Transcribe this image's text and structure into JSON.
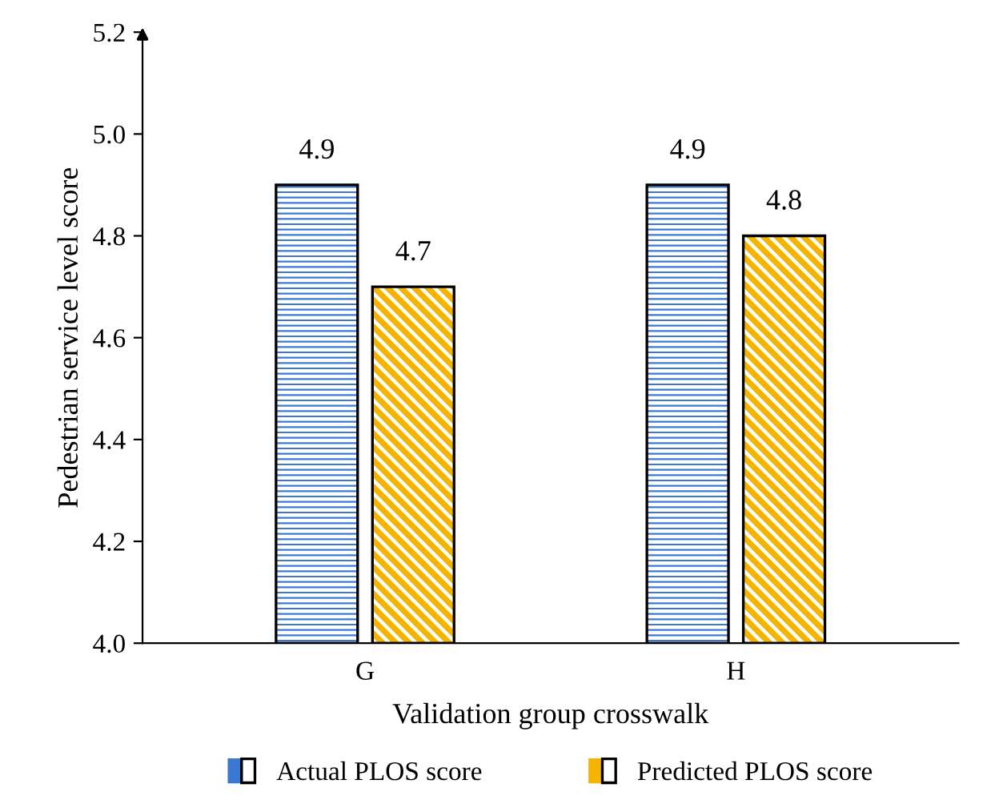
{
  "chart_data": {
    "type": "bar",
    "xlabel": "Validation group crosswalk",
    "ylabel": "Pedestrian service level score",
    "categories": [
      "G",
      "H"
    ],
    "series": [
      {
        "name": "Actual PLOS score",
        "color": "#3a78d4",
        "values": [
          4.9,
          4.9
        ]
      },
      {
        "name": "Predicted PLOS score",
        "color": "#f5b400",
        "values": [
          4.7,
          4.8
        ]
      }
    ],
    "ylim": [
      4.0,
      5.2
    ],
    "yticks": [
      {
        "value": 4.0,
        "label": "4.0"
      },
      {
        "value": 4.2,
        "label": "4.2"
      },
      {
        "value": 4.4,
        "label": "4.4"
      },
      {
        "value": 4.6,
        "label": "4.6"
      },
      {
        "value": 4.8,
        "label": "4.8"
      },
      {
        "value": 5.0,
        "label": "5.0"
      },
      {
        "value": 5.2,
        "label": "5.2"
      }
    ],
    "data_labels": true,
    "legend": "bottom",
    "grid": false
  }
}
